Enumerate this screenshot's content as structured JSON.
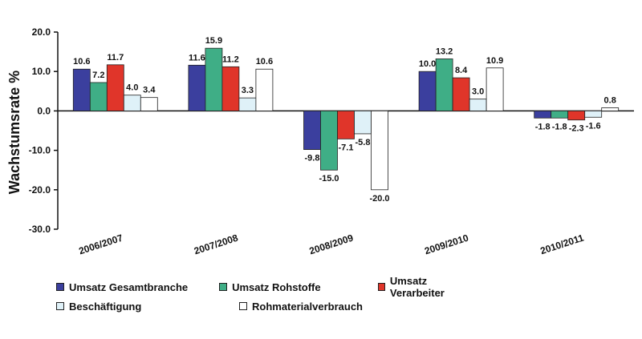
{
  "chart_data": {
    "type": "bar",
    "ylabel": "Wachstumsrate %",
    "ylim": [
      -30,
      20
    ],
    "yticks": [
      "20.0",
      "10.0",
      "0.0",
      "-10.0",
      "-20.0",
      "-30.0"
    ],
    "categories": [
      "2006/2007",
      "2007/2008",
      "2008/2009",
      "2009/2010",
      "2010/2011"
    ],
    "series": [
      {
        "name": "Umsatz Gesamtbranche",
        "color": "#3b3f9e",
        "values": [
          10.6,
          11.6,
          -9.8,
          10.0,
          -1.8
        ],
        "labels": [
          "10.6",
          "11.6",
          "-9.8",
          "10.0",
          "-1.8"
        ]
      },
      {
        "name": "Umsatz Rohstoffe",
        "color": "#3fae86",
        "values": [
          7.2,
          15.9,
          -15.0,
          13.2,
          -1.8
        ],
        "labels": [
          "7.2",
          "15.9",
          "-15.0",
          "13.2",
          "-1.8"
        ]
      },
      {
        "name": "Umsatz Verarbeiter",
        "color": "#e0352a",
        "values": [
          11.7,
          11.2,
          -7.1,
          8.4,
          -2.3
        ],
        "labels": [
          "11.7",
          "11.2",
          "-7.1",
          "8.4",
          "-2.3"
        ]
      },
      {
        "name": "Beschäftigung",
        "color": "#dff1f8",
        "values": [
          4.0,
          3.3,
          -5.8,
          3.0,
          -1.6
        ],
        "labels": [
          "4.0",
          "3.3",
          "-5.8",
          "3.0",
          "-1.6"
        ]
      },
      {
        "name": "Rohmaterialverbrauch",
        "color": "#ffffff",
        "values": [
          3.4,
          10.6,
          -20.0,
          10.9,
          0.8
        ],
        "labels": [
          "3.4",
          "10.6",
          "-20.0",
          "10.9",
          "0.8"
        ]
      }
    ],
    "grid": false,
    "legend_position": "bottom"
  }
}
